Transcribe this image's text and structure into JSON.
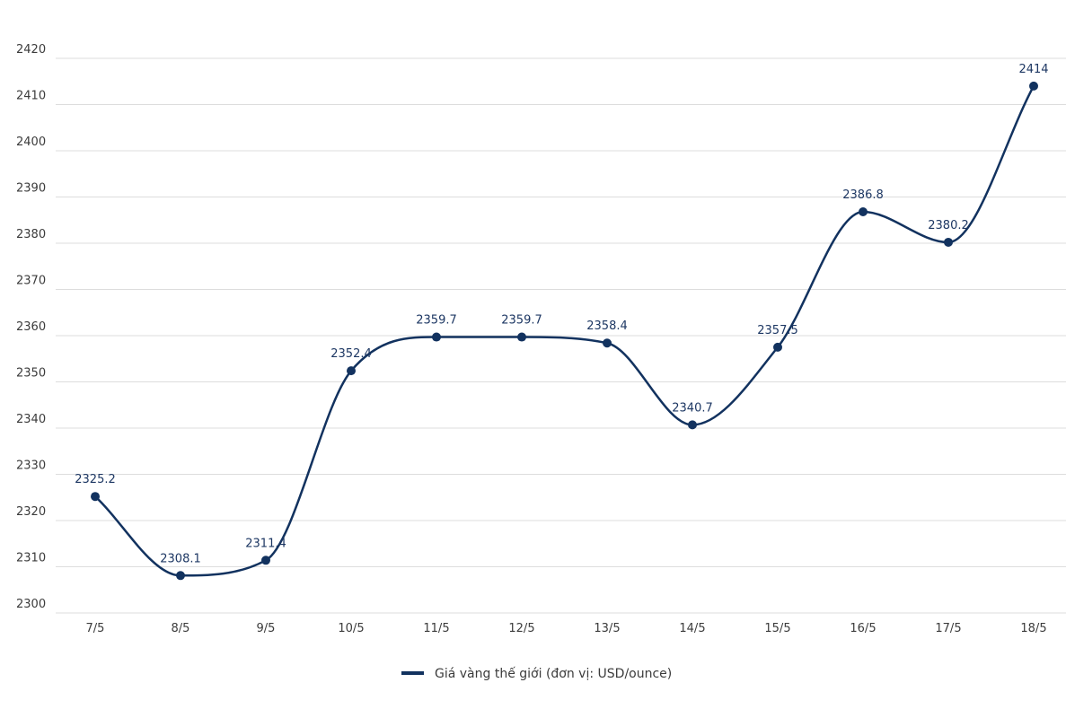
{
  "chart_data": {
    "type": "line",
    "title": "",
    "xlabel": "",
    "ylabel": "",
    "categories": [
      "7/5",
      "8/5",
      "9/5",
      "10/5",
      "11/5",
      "12/5",
      "13/5",
      "14/5",
      "15/5",
      "16/5",
      "17/5",
      "18/5"
    ],
    "series": [
      {
        "name": "Giá vàng thế giới (đơn vị: USD/ounce)",
        "values": [
          2325.2,
          2308.1,
          2311.4,
          2352.4,
          2359.7,
          2359.7,
          2358.4,
          2340.7,
          2357.5,
          2386.8,
          2380.2,
          2414
        ],
        "labels": [
          "2325.2",
          "2308.1",
          "2311.4",
          "2352.4",
          "2359.7",
          "2359.7",
          "2358.4",
          "2340.7",
          "2357.5",
          "2386.8",
          "2380.2",
          "2414"
        ],
        "color": "#12325f"
      }
    ],
    "ylim": [
      2300,
      2420
    ],
    "yticks": [
      "2300",
      "2310",
      "2320",
      "2330",
      "2340",
      "2350",
      "2360",
      "2370",
      "2380",
      "2390",
      "2400",
      "2410",
      "2420"
    ],
    "grid": true,
    "legend_position": "bottom-center"
  },
  "colors": {
    "line": "#12325f",
    "grid": "#dddddd",
    "tick_text": "#3b3b3b",
    "label_text": "#1d3763"
  }
}
